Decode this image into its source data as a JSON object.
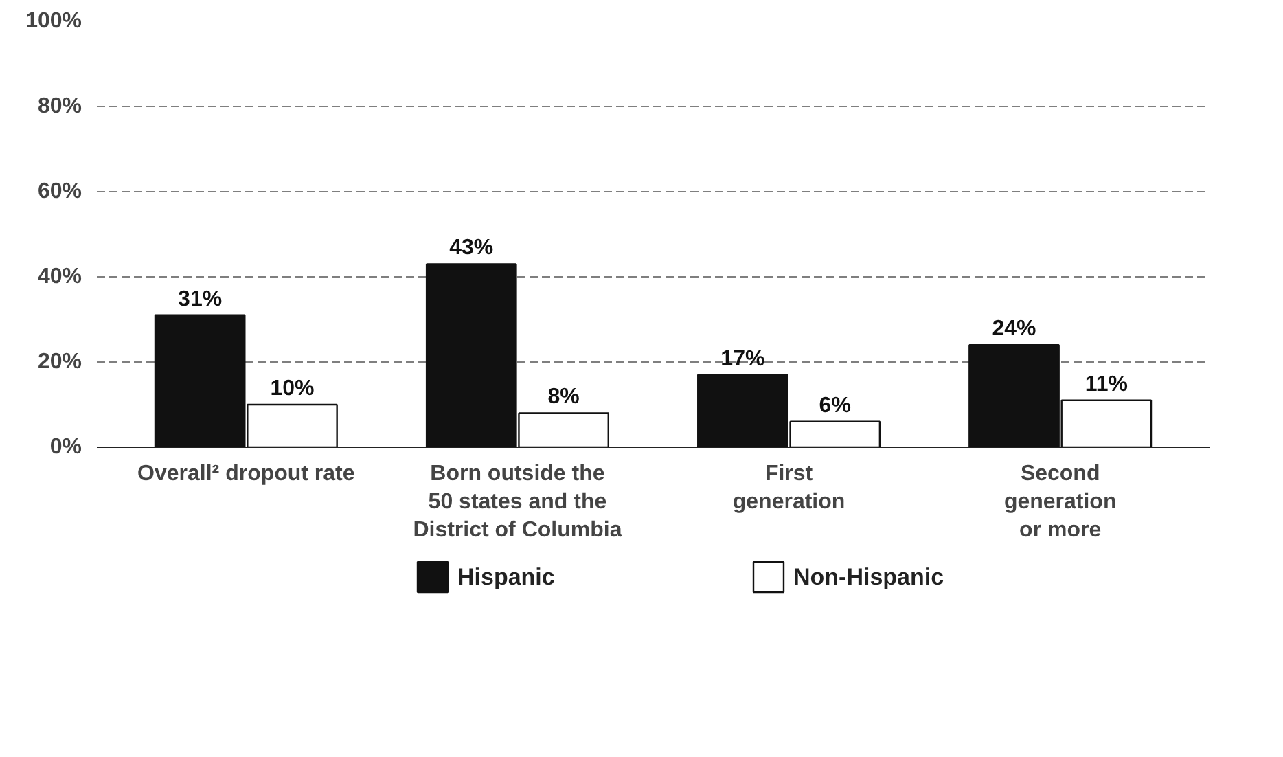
{
  "chart_data": {
    "type": "bar",
    "categories": [
      "Overall² dropout rate",
      "Born outside the\n50 states and the\nDistrict of Columbia",
      "First\ngeneration",
      "Second\ngeneration\nor more"
    ],
    "series": [
      {
        "name": "Hispanic",
        "color": "#111111",
        "values": [
          31,
          43,
          17,
          24
        ],
        "value_labels": [
          "31%",
          "43%",
          "17%",
          "24%"
        ]
      },
      {
        "name": "Non-Hispanic",
        "color": "#ffffff",
        "values": [
          10,
          8,
          6,
          11
        ],
        "value_labels": [
          "10%",
          "8%",
          "6%",
          "11%"
        ]
      }
    ],
    "ylim": [
      0,
      100
    ],
    "yticks": [
      {
        "value": 0,
        "label": "0%"
      },
      {
        "value": 20,
        "label": "20%"
      },
      {
        "value": 40,
        "label": "40%"
      },
      {
        "value": 60,
        "label": "60%"
      },
      {
        "value": 80,
        "label": "80%"
      },
      {
        "value": 100,
        "label": "100%"
      }
    ],
    "grid": "y",
    "legend": "bottom"
  }
}
